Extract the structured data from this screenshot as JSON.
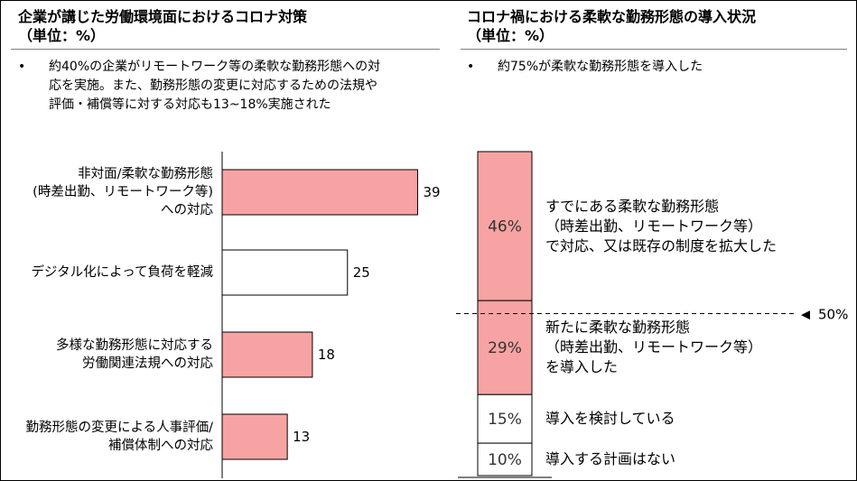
{
  "left": {
    "title_line1": "企業が講じた労働環境面におけるコロナ対策",
    "title_line2": "（単位：%）",
    "bullet_mark": "•",
    "bullet_lines": [
      "約40%の企業がリモートワーク等の柔軟な勤務形態への対",
      "応を実施。また、勤務形態の変更に対応するための法規や",
      "評価・補償等に対する対応も13~18%実施された"
    ]
  },
  "right": {
    "title_line1": "コロナ禍における柔軟な勤務形態の導入状況",
    "title_line2": "（単位：%）",
    "bullet_mark": "•",
    "bullet_text": "約75%が柔軟な勤務形態を導入した",
    "marker_arrow": "◀",
    "marker_label": "50%"
  },
  "colors": {
    "pink": "#f8a3a3",
    "white": "#ffffff",
    "stroke": "#000000"
  },
  "chart_data": [
    {
      "type": "bar",
      "orientation": "horizontal",
      "categories": [
        [
          "非対面/柔軟な勤務形態",
          "(時差出勤、リモートワーク等)",
          "への対応"
        ],
        [
          "デジタル化によって負荷を軽減"
        ],
        [
          "多様な勤務形態に対応する",
          "労働関連法規への対応"
        ],
        [
          "勤務形態の変更による人事評価/",
          "補償体制への対応"
        ]
      ],
      "values": [
        39,
        25,
        18,
        13
      ],
      "value_labels": [
        "39",
        "25",
        "18",
        "13"
      ],
      "fill_colors": [
        "#f8a3a3",
        "#ffffff",
        "#f8a3a3",
        "#f8a3a3"
      ],
      "xlim": [
        0,
        100
      ],
      "grid": false
    },
    {
      "type": "bar",
      "orientation": "stacked-vertical",
      "segments": [
        {
          "value": 46,
          "label": "46%",
          "fill": "#f8a3a3",
          "description": [
            "すでにある柔軟な勤務形態",
            "（時差出勤、リモートワーク等）",
            "で対応、又は既存の制度を拡大した"
          ]
        },
        {
          "value": 29,
          "label": "29%",
          "fill": "#f8a3a3",
          "description": [
            "新たに柔軟な勤務形態",
            "（時差出勤、リモートワーク等）",
            "を導入した"
          ]
        },
        {
          "value": 15,
          "label": "15%",
          "fill": "#ffffff",
          "description": [
            "導入を検討している"
          ]
        },
        {
          "value": 10,
          "label": "10%",
          "fill": "#ffffff",
          "description": [
            "導入する計画はない"
          ]
        }
      ],
      "reference_line": {
        "value": 50,
        "label": "50%",
        "style": "dashed"
      },
      "ylim": [
        0,
        100
      ]
    }
  ]
}
